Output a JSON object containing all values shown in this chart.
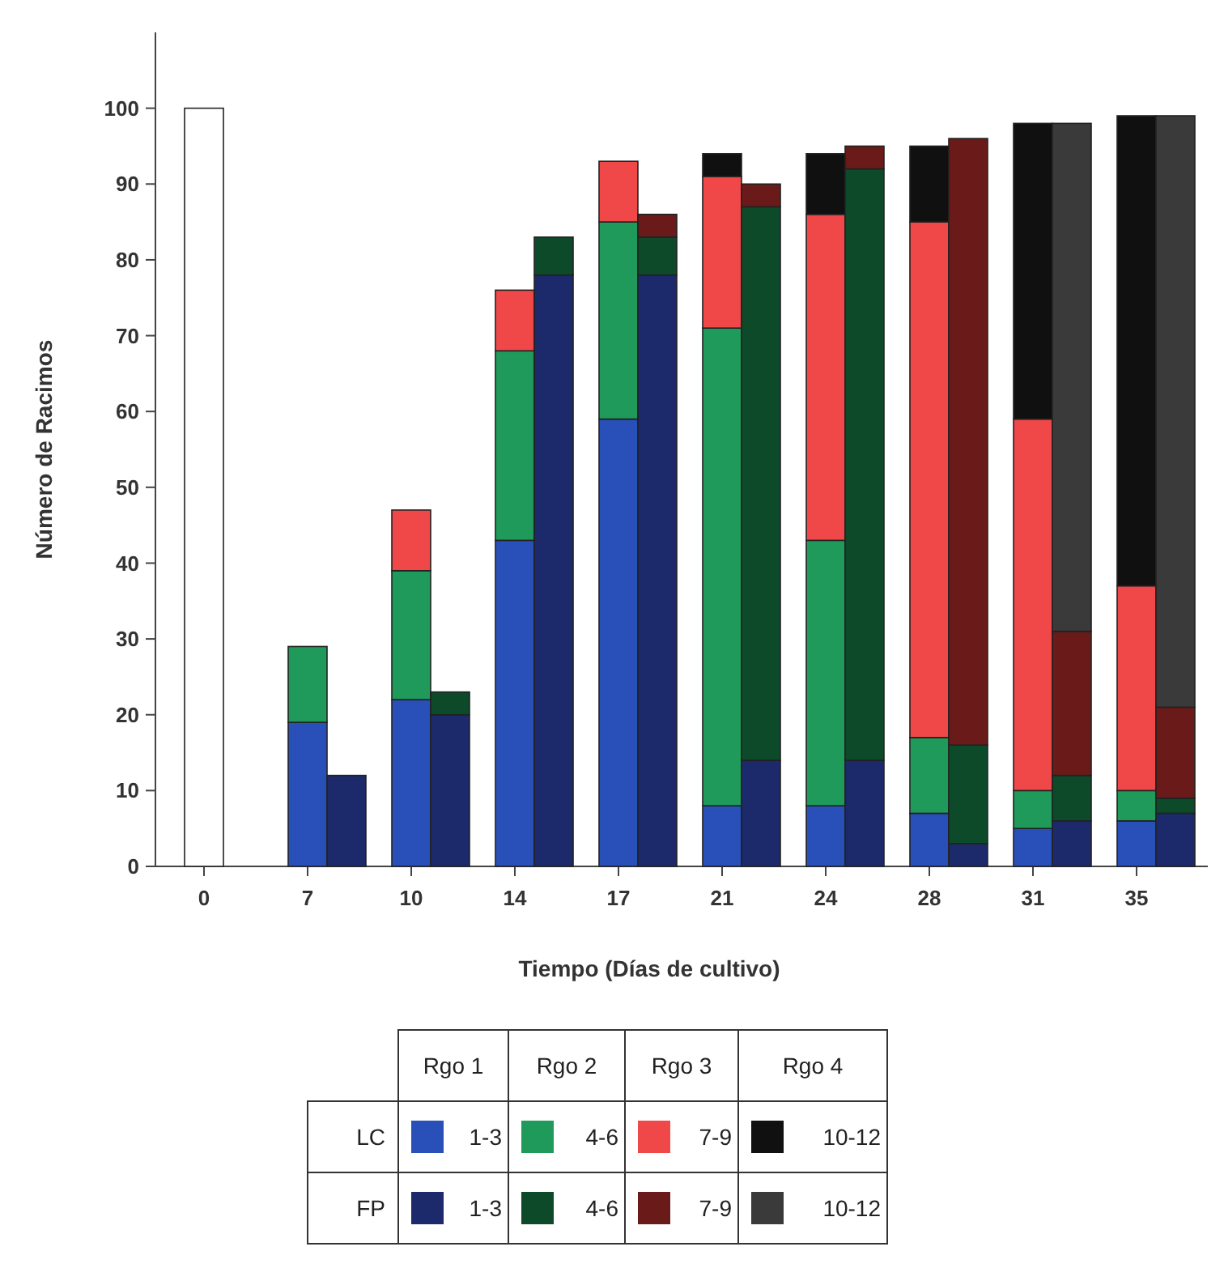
{
  "chart_data": {
    "type": "bar",
    "stacked": true,
    "xlabel": "Tiempo (Días de cultivo)",
    "ylabel": "Número de Racimos",
    "categories": [
      "0",
      null,
      "7",
      null,
      "10",
      null,
      "14",
      null,
      "17",
      null,
      "21",
      null,
      "24",
      null,
      "28",
      null,
      "31",
      null,
      "35",
      null
    ],
    "ylim": [
      0,
      110
    ],
    "yticks": [
      0,
      10,
      20,
      30,
      40,
      50,
      60,
      70,
      80,
      90,
      100
    ],
    "legend": "bottom",
    "annotations": [
      "Rgo 1",
      "Rgo 2",
      "Rgo 3",
      "Rgo 4",
      "LC",
      "FP"
    ],
    "series": [
      {
        "color": "#ffffff",
        "values": [
          100,
          null,
          null,
          null,
          null,
          null,
          null,
          null,
          null,
          null,
          null,
          null,
          null,
          null,
          null,
          null,
          null,
          null,
          null,
          null
        ]
      },
      {
        "name": "1-3",
        "color": "#2850b8",
        "values": [
          null,
          null,
          19,
          null,
          22,
          null,
          43,
          null,
          59,
          null,
          8,
          null,
          8,
          null,
          7,
          null,
          5,
          null,
          6,
          null
        ]
      },
      {
        "name": "4-6",
        "color": "#1f9a5a",
        "values": [
          null,
          null,
          10,
          null,
          17,
          null,
          25,
          null,
          26,
          null,
          63,
          null,
          35,
          null,
          10,
          null,
          5,
          null,
          4,
          null
        ]
      },
      {
        "name": "7-9",
        "color": "#f04848",
        "values": [
          null,
          null,
          null,
          null,
          8,
          null,
          8,
          null,
          8,
          null,
          20,
          null,
          43,
          null,
          68,
          null,
          49,
          null,
          27,
          null
        ]
      },
      {
        "name": "10-12",
        "color": "#101010",
        "values": [
          null,
          null,
          null,
          null,
          null,
          null,
          null,
          null,
          null,
          null,
          3,
          null,
          8,
          null,
          10,
          null,
          39,
          null,
          62,
          null
        ]
      },
      {
        "name": "1-3",
        "color": "#1c2a6b",
        "values": [
          null,
          null,
          null,
          12,
          null,
          20,
          null,
          78,
          null,
          78,
          null,
          14,
          null,
          14,
          null,
          3,
          null,
          6,
          null,
          7
        ]
      },
      {
        "name": "4-6",
        "color": "#0d4a2a",
        "values": [
          null,
          null,
          null,
          null,
          null,
          3,
          null,
          5,
          null,
          5,
          null,
          73,
          null,
          78,
          null,
          13,
          null,
          6,
          null,
          2
        ]
      },
      {
        "name": "7-9",
        "color": "#6b1a1a",
        "values": [
          null,
          null,
          null,
          null,
          null,
          null,
          null,
          null,
          null,
          3,
          null,
          3,
          null,
          3,
          null,
          80,
          null,
          19,
          null,
          12
        ]
      },
      {
        "name": "10-12",
        "color": "#3a3a3a",
        "values": [
          null,
          null,
          null,
          null,
          null,
          null,
          null,
          null,
          null,
          null,
          null,
          null,
          null,
          null,
          null,
          null,
          null,
          67,
          null,
          78
        ]
      }
    ]
  }
}
